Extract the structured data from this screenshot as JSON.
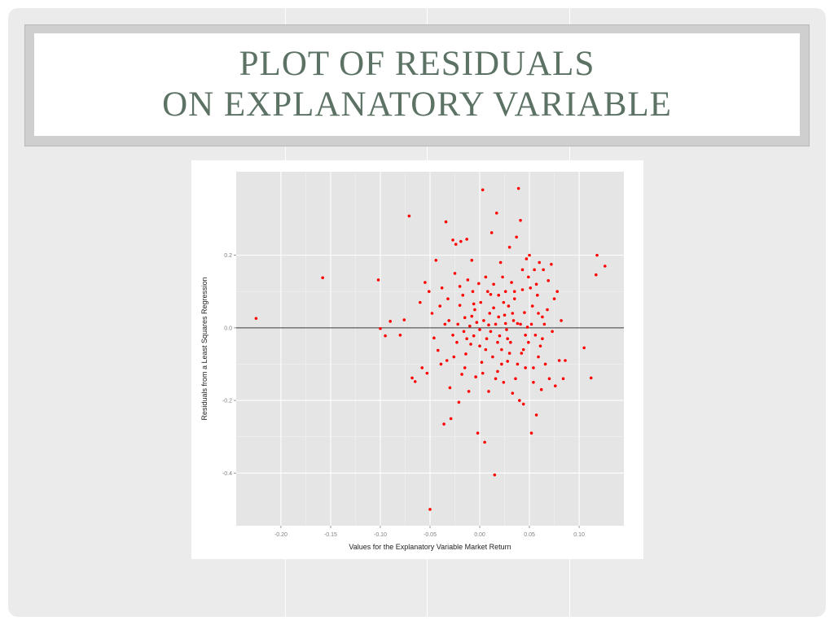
{
  "slide": {
    "title_line1": "PLOT OF RESIDUALS",
    "title_line2": "ON EXPLANATORY VARIABLE"
  },
  "colors": {
    "title": "#5c7264",
    "panel": "#e5e5e5",
    "point": "#ff0000",
    "zero_line": "#333333"
  },
  "chart_data": {
    "type": "scatter",
    "xlabel": "Values for the Explanatory Variable Market Return",
    "ylabel": "Residuals from a Least Squares Regression",
    "xlim": [
      -0.245,
      0.145
    ],
    "ylim": [
      -0.545,
      0.43
    ],
    "x_ticks": [
      -0.2,
      -0.15,
      -0.1,
      -0.05,
      0.0,
      0.05,
      0.1
    ],
    "x_tick_labels": [
      "-0.20",
      "-0.15",
      "-0.10",
      "-0.05",
      "0.00",
      "0.05",
      "0.10"
    ],
    "y_ticks": [
      0.2,
      0.0,
      -0.2,
      -0.4
    ],
    "y_tick_labels": [
      "0.2",
      "0.0",
      "-0.2",
      "-0.4"
    ],
    "grid": true,
    "hline": 0,
    "points": [
      [
        -0.225,
        0.026
      ],
      [
        -0.158,
        0.138
      ],
      [
        -0.102,
        0.132
      ],
      [
        -0.1,
        -0.002
      ],
      [
        -0.095,
        -0.022
      ],
      [
        -0.09,
        0.018
      ],
      [
        -0.08,
        -0.02
      ],
      [
        -0.076,
        0.022
      ],
      [
        -0.071,
        0.308
      ],
      [
        -0.068,
        -0.138
      ],
      [
        -0.065,
        -0.148
      ],
      [
        -0.06,
        0.07
      ],
      [
        -0.058,
        -0.11
      ],
      [
        -0.055,
        0.125
      ],
      [
        -0.053,
        -0.125
      ],
      [
        -0.051,
        0.1
      ],
      [
        -0.05,
        -0.5
      ],
      [
        -0.048,
        0.04
      ],
      [
        -0.046,
        -0.028
      ],
      [
        -0.044,
        0.186
      ],
      [
        -0.042,
        -0.062
      ],
      [
        -0.04,
        0.06
      ],
      [
        -0.038,
        0.11
      ],
      [
        -0.036,
        -0.265
      ],
      [
        -0.034,
        0.292
      ],
      [
        -0.033,
        -0.09
      ],
      [
        -0.031,
        0.02
      ],
      [
        -0.03,
        -0.165
      ],
      [
        -0.029,
        -0.25
      ],
      [
        -0.027,
        0.242
      ],
      [
        -0.025,
        0.15
      ],
      [
        -0.024,
        0.23
      ],
      [
        -0.023,
        -0.04
      ],
      [
        -0.022,
        0.01
      ],
      [
        -0.021,
        -0.205
      ],
      [
        -0.02,
        0.062
      ],
      [
        -0.019,
        0.238
      ],
      [
        -0.018,
        -0.128
      ],
      [
        -0.017,
        0.09
      ],
      [
        -0.016,
        -0.01
      ],
      [
        -0.015,
        0.028
      ],
      [
        -0.014,
        -0.072
      ],
      [
        -0.013,
        0.244
      ],
      [
        -0.012,
        0.132
      ],
      [
        -0.011,
        -0.175
      ],
      [
        -0.01,
        0.005
      ],
      [
        -0.009,
        -0.045
      ],
      [
        -0.008,
        0.186
      ],
      [
        -0.007,
        0.1
      ],
      [
        -0.006,
        -0.022
      ],
      [
        -0.005,
        0.05
      ],
      [
        -0.004,
        -0.135
      ],
      [
        -0.003,
        0.015
      ],
      [
        -0.002,
        -0.29
      ],
      [
        -0.001,
        0.122
      ],
      [
        0.0,
        -0.05
      ],
      [
        0.001,
        0.07
      ],
      [
        0.002,
        -0.095
      ],
      [
        0.003,
        0.38
      ],
      [
        0.004,
        0.02
      ],
      [
        0.005,
        -0.315
      ],
      [
        0.006,
        0.14
      ],
      [
        0.007,
        -0.03
      ],
      [
        0.008,
        0.1
      ],
      [
        0.009,
        -0.175
      ],
      [
        0.01,
        0.04
      ],
      [
        0.011,
        -0.01
      ],
      [
        0.012,
        0.262
      ],
      [
        0.013,
        -0.08
      ],
      [
        0.014,
        0.055
      ],
      [
        0.015,
        -0.405
      ],
      [
        0.016,
        0.01
      ],
      [
        0.017,
        0.316
      ],
      [
        0.018,
        -0.12
      ],
      [
        0.019,
        0.09
      ],
      [
        0.02,
        -0.022
      ],
      [
        0.021,
        0.18
      ],
      [
        0.022,
        -0.06
      ],
      [
        0.023,
        0.14
      ],
      [
        0.024,
        -0.15
      ],
      [
        0.025,
        0.035
      ],
      [
        0.026,
        0.1
      ],
      [
        0.027,
        -0.005
      ],
      [
        0.028,
        -0.092
      ],
      [
        0.029,
        0.06
      ],
      [
        0.03,
        0.222
      ],
      [
        0.031,
        -0.04
      ],
      [
        0.032,
        0.125
      ],
      [
        0.033,
        -0.18
      ],
      [
        0.034,
        0.02
      ],
      [
        0.035,
        0.08
      ],
      [
        0.036,
        -0.14
      ],
      [
        0.037,
        0.25
      ],
      [
        0.038,
        0.012
      ],
      [
        0.039,
        0.384
      ],
      [
        0.04,
        -0.2
      ],
      [
        0.041,
        0.296
      ],
      [
        0.042,
        -0.07
      ],
      [
        0.043,
        0.16
      ],
      [
        0.044,
        -0.21
      ],
      [
        0.045,
        0.042
      ],
      [
        0.046,
        -0.11
      ],
      [
        0.047,
        0.19
      ],
      [
        0.048,
        0.002
      ],
      [
        0.049,
        -0.04
      ],
      [
        0.05,
        0.2
      ],
      [
        0.051,
        0.11
      ],
      [
        0.052,
        -0.29
      ],
      [
        0.053,
        0.06
      ],
      [
        0.054,
        -0.15
      ],
      [
        0.055,
        0.16
      ],
      [
        0.056,
        -0.02
      ],
      [
        0.057,
        -0.24
      ],
      [
        0.058,
        0.09
      ],
      [
        0.059,
        -0.08
      ],
      [
        0.06,
        0.18
      ],
      [
        0.062,
        -0.17
      ],
      [
        0.063,
        0.03
      ],
      [
        0.064,
        0.16
      ],
      [
        0.066,
        -0.1
      ],
      [
        0.068,
        0.05
      ],
      [
        0.07,
        -0.14
      ],
      [
        0.072,
        0.175
      ],
      [
        0.073,
        -0.01
      ],
      [
        0.075,
        0.08
      ],
      [
        0.076,
        -0.16
      ],
      [
        0.078,
        0.1
      ],
      [
        0.08,
        -0.09
      ],
      [
        0.082,
        0.02
      ],
      [
        0.084,
        -0.14
      ],
      [
        0.086,
        -0.09
      ],
      [
        0.105,
        -0.055
      ],
      [
        0.112,
        -0.138
      ],
      [
        0.117,
        0.146
      ],
      [
        0.118,
        0.2
      ],
      [
        0.126,
        0.17
      ],
      [
        -0.035,
        0.01
      ],
      [
        -0.026,
        -0.08
      ],
      [
        -0.015,
        -0.11
      ],
      [
        -0.008,
        0.032
      ],
      [
        0.0,
        -0.005
      ],
      [
        0.006,
        -0.06
      ],
      [
        0.011,
        0.092
      ],
      [
        0.016,
        -0.14
      ],
      [
        0.019,
        0.03
      ],
      [
        0.024,
        0.07
      ],
      [
        0.028,
        -0.03
      ],
      [
        0.033,
        0.04
      ],
      [
        0.038,
        -0.1
      ],
      [
        0.043,
        0.105
      ],
      [
        0.046,
        -0.02
      ],
      [
        0.052,
        0.01
      ],
      [
        0.057,
        0.12
      ],
      [
        0.061,
        -0.05
      ],
      [
        0.065,
        0.01
      ],
      [
        0.069,
        0.13
      ],
      [
        -0.039,
        -0.1
      ],
      [
        -0.032,
        0.08
      ],
      [
        -0.027,
        -0.02
      ],
      [
        -0.02,
        0.114
      ],
      [
        -0.013,
        -0.03
      ],
      [
        -0.006,
        0.066
      ],
      [
        0.003,
        -0.125
      ],
      [
        0.009,
        0.008
      ],
      [
        0.014,
        0.12
      ],
      [
        0.018,
        -0.04
      ],
      [
        0.022,
        -0.1
      ],
      [
        0.026,
        0.012
      ],
      [
        0.03,
        -0.07
      ],
      [
        0.035,
        0.1
      ],
      [
        0.041,
        0.01
      ],
      [
        0.044,
        -0.06
      ],
      [
        0.049,
        0.14
      ],
      [
        0.054,
        -0.11
      ],
      [
        0.059,
        0.04
      ],
      [
        0.063,
        -0.03
      ]
    ]
  }
}
